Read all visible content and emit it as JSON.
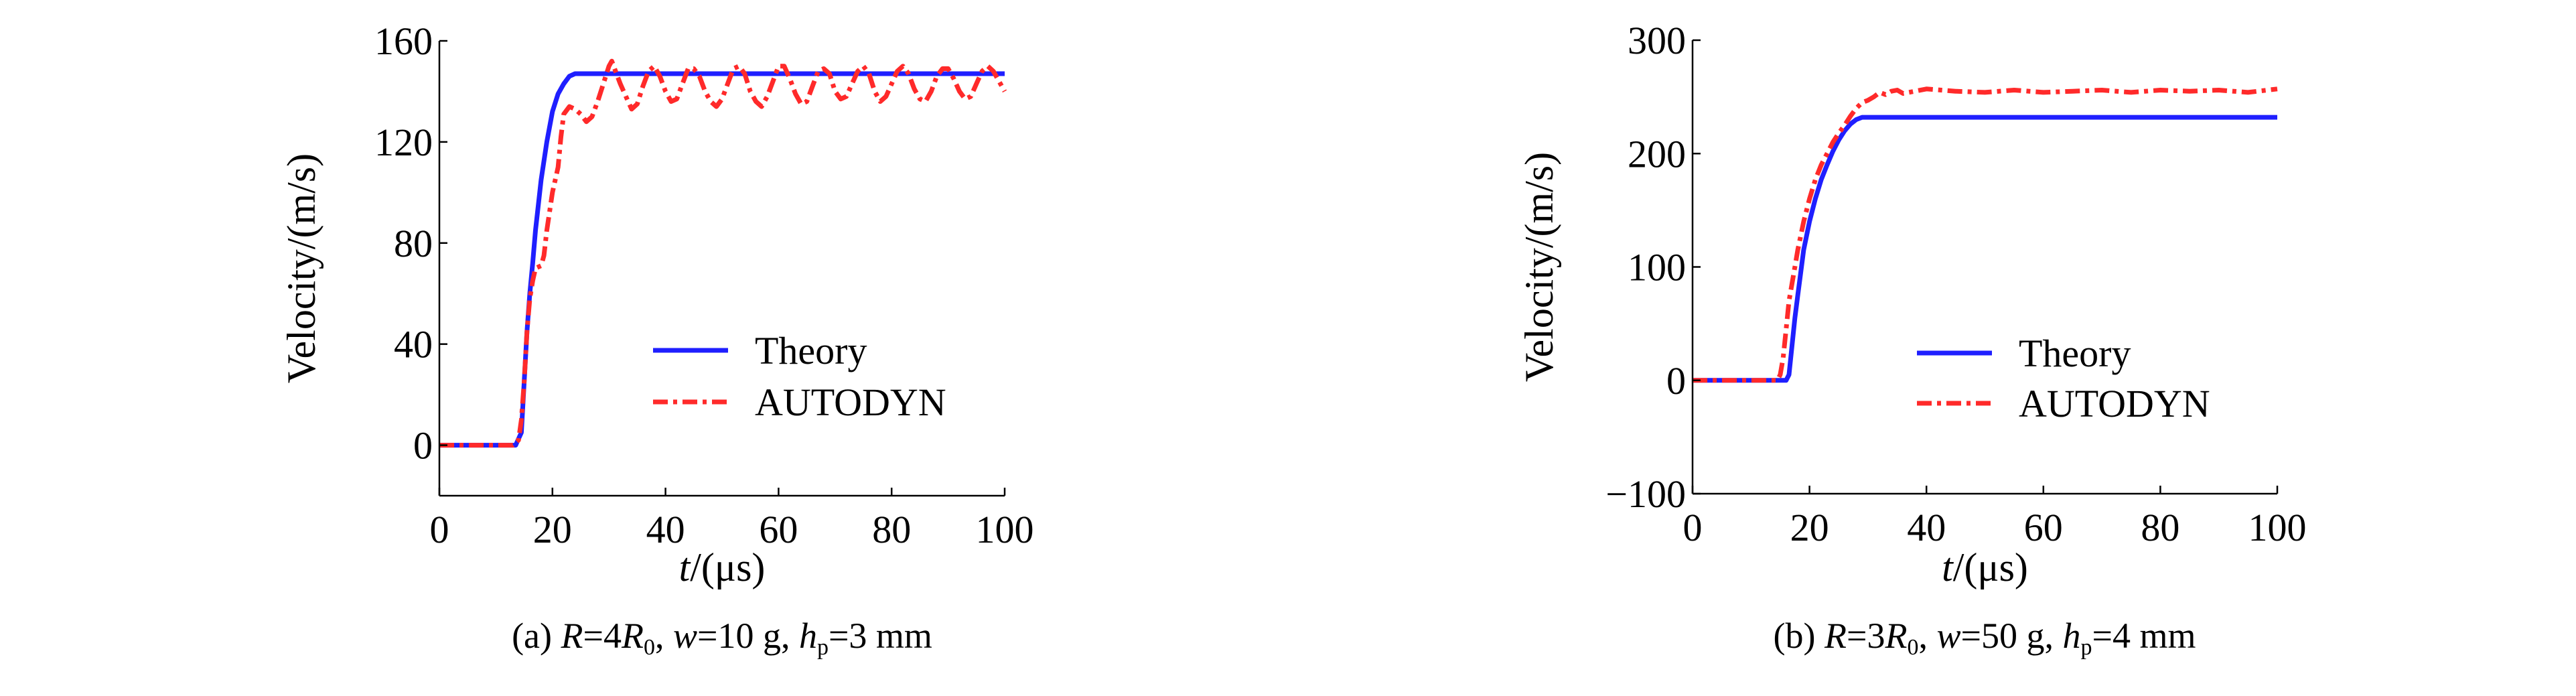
{
  "colors": {
    "theory": "#1f1fff",
    "autodyn": "#ff2a2a",
    "axis": "#000000"
  },
  "chart_data": [
    {
      "type": "line",
      "caption": [
        {
          "t": "(a) "
        },
        {
          "t": "R",
          "i": true
        },
        {
          "t": "=4"
        },
        {
          "t": "R",
          "i": true
        },
        {
          "t": "0",
          "sub": true
        },
        {
          "t": ", "
        },
        {
          "t": "w",
          "i": true
        },
        {
          "t": "=10 g, "
        },
        {
          "t": "h",
          "i": true
        },
        {
          "t": "p",
          "sub": true
        },
        {
          "t": "=3 mm"
        }
      ],
      "xlabel": {
        "italic": "t",
        "rest": "/(μs)"
      },
      "ylabel": "Velocity/(m/s)",
      "xlim": [
        0,
        100
      ],
      "ylim": [
        -20,
        160
      ],
      "xticks": [
        0,
        20,
        40,
        60,
        80,
        100
      ],
      "yticks": [
        0,
        40,
        80,
        120,
        160
      ],
      "grid": false,
      "legend": "center-right",
      "series": [
        {
          "name": "Theory",
          "style": "solid",
          "points": [
            [
              0,
              0
            ],
            [
              13.5,
              0
            ],
            [
              14.5,
              5
            ],
            [
              15,
              25
            ],
            [
              15.5,
              45
            ],
            [
              16,
              60
            ],
            [
              16.5,
              72
            ],
            [
              17,
              85
            ],
            [
              17.5,
              95
            ],
            [
              18,
              105
            ],
            [
              19,
              120
            ],
            [
              20,
              132
            ],
            [
              21,
              139
            ],
            [
              22,
              143
            ],
            [
              23,
              146
            ],
            [
              24,
              147
            ],
            [
              100,
              147
            ]
          ]
        },
        {
          "name": "AUTODYN",
          "style": "dashdot",
          "points": [
            [
              0,
              0
            ],
            [
              13,
              0
            ],
            [
              14,
              2
            ],
            [
              14.5,
              10
            ],
            [
              15,
              25
            ],
            [
              15.5,
              45
            ],
            [
              16,
              58
            ],
            [
              16.5,
              65
            ],
            [
              17,
              70
            ],
            [
              18,
              71
            ],
            [
              18.5,
              75
            ],
            [
              19,
              85
            ],
            [
              20,
              100
            ],
            [
              21,
              110
            ],
            [
              21.5,
              122
            ],
            [
              22,
              131
            ],
            [
              23,
              134
            ],
            [
              24,
              133
            ],
            [
              25,
              131
            ],
            [
              26,
              128
            ],
            [
              27,
              130
            ],
            [
              28,
              136
            ],
            [
              29,
              143
            ],
            [
              30,
              150
            ],
            [
              30.5,
              152
            ],
            [
              31,
              149
            ],
            [
              32,
              143
            ],
            [
              33,
              138
            ],
            [
              34,
              133
            ],
            [
              35,
              135
            ],
            [
              36,
              142
            ],
            [
              37,
              148
            ],
            [
              38,
              150
            ],
            [
              39,
              146
            ],
            [
              40,
              140
            ],
            [
              41,
              136
            ],
            [
              42,
              137
            ],
            [
              43,
              143
            ],
            [
              44,
              149
            ],
            [
              45,
              149
            ],
            [
              46,
              146
            ],
            [
              47,
              140
            ],
            [
              48,
              136
            ],
            [
              49,
              134
            ],
            [
              50,
              137
            ],
            [
              51,
              143
            ],
            [
              52,
              149
            ],
            [
              53,
              150
            ],
            [
              54,
              147
            ],
            [
              55,
              140
            ],
            [
              56,
              136
            ],
            [
              57,
              134
            ],
            [
              58,
              138
            ],
            [
              59,
              144
            ],
            [
              60,
              150
            ],
            [
              61,
              150
            ],
            [
              62,
              145
            ],
            [
              63,
              139
            ],
            [
              64,
              135
            ],
            [
              65,
              136
            ],
            [
              66,
              142
            ],
            [
              67,
              148
            ],
            [
              68,
              149
            ],
            [
              69,
              147
            ],
            [
              70,
              140
            ],
            [
              71,
              137
            ],
            [
              72,
              138
            ],
            [
              73,
              143
            ],
            [
              74,
              148
            ],
            [
              75,
              150
            ],
            [
              76,
              147
            ],
            [
              77,
              140
            ],
            [
              78,
              136
            ],
            [
              79,
              138
            ],
            [
              80,
              143
            ],
            [
              81,
              148
            ],
            [
              82,
              150
            ],
            [
              83,
              147
            ],
            [
              84,
              141
            ],
            [
              85,
              137
            ],
            [
              86,
              136
            ],
            [
              87,
              140
            ],
            [
              88,
              146
            ],
            [
              89,
              149
            ],
            [
              90,
              149
            ],
            [
              91,
              145
            ],
            [
              92,
              140
            ],
            [
              93,
              137
            ],
            [
              94,
              138
            ],
            [
              95,
              143
            ],
            [
              96,
              148
            ],
            [
              97,
              150
            ],
            [
              98,
              148
            ],
            [
              99,
              144
            ],
            [
              100,
              140
            ]
          ]
        }
      ]
    },
    {
      "type": "line",
      "caption": [
        {
          "t": "(b) "
        },
        {
          "t": "R",
          "i": true
        },
        {
          "t": "=3"
        },
        {
          "t": "R",
          "i": true
        },
        {
          "t": "0",
          "sub": true
        },
        {
          "t": ", "
        },
        {
          "t": "w",
          "i": true
        },
        {
          "t": "=50 g, "
        },
        {
          "t": "h",
          "i": true
        },
        {
          "t": "p",
          "sub": true
        },
        {
          "t": "=4 mm"
        }
      ],
      "xlabel": {
        "italic": "t",
        "rest": "/(μs)"
      },
      "ylabel": "Velocity/(m/s)",
      "xlim": [
        0,
        100
      ],
      "ylim": [
        -100,
        300
      ],
      "xticks": [
        0,
        20,
        40,
        60,
        80,
        100
      ],
      "yticks": [
        -100,
        0,
        100,
        200,
        300
      ],
      "grid": false,
      "legend": "center-right",
      "series": [
        {
          "name": "Theory",
          "style": "solid",
          "points": [
            [
              0,
              0
            ],
            [
              16,
              0
            ],
            [
              16.5,
              5
            ],
            [
              17,
              30
            ],
            [
              17.5,
              55
            ],
            [
              18,
              75
            ],
            [
              18.5,
              95
            ],
            [
              19,
              115
            ],
            [
              20,
              140
            ],
            [
              21,
              160
            ],
            [
              22,
              177
            ],
            [
              23,
              190
            ],
            [
              24,
              202
            ],
            [
              25,
              212
            ],
            [
              26,
              220
            ],
            [
              27,
              226
            ],
            [
              28,
              230
            ],
            [
              29,
              232
            ],
            [
              100,
              232
            ]
          ]
        },
        {
          "name": "AUTODYN",
          "style": "dashdot",
          "points": [
            [
              0,
              0
            ],
            [
              14.5,
              0
            ],
            [
              15,
              5
            ],
            [
              15.5,
              20
            ],
            [
              16,
              45
            ],
            [
              16.5,
              70
            ],
            [
              17,
              85
            ],
            [
              17.5,
              100
            ],
            [
              18,
              115
            ],
            [
              19,
              140
            ],
            [
              20,
              160
            ],
            [
              21,
              177
            ],
            [
              22,
              190
            ],
            [
              23,
              200
            ],
            [
              24,
              210
            ],
            [
              25,
              218
            ],
            [
              26,
              225
            ],
            [
              27,
              233
            ],
            [
              28,
              240
            ],
            [
              29,
              245
            ],
            [
              30,
              247
            ],
            [
              31,
              250
            ],
            [
              32,
              254
            ],
            [
              33,
              252
            ],
            [
              34,
              255
            ],
            [
              35,
              256
            ],
            [
              36,
              253
            ],
            [
              38,
              255
            ],
            [
              40,
              257
            ],
            [
              45,
              255
            ],
            [
              50,
              254
            ],
            [
              55,
              256
            ],
            [
              60,
              254
            ],
            [
              65,
              255
            ],
            [
              70,
              256
            ],
            [
              75,
              254
            ],
            [
              80,
              256
            ],
            [
              85,
              255
            ],
            [
              90,
              256
            ],
            [
              95,
              254
            ],
            [
              100,
              257
            ]
          ]
        }
      ]
    }
  ]
}
